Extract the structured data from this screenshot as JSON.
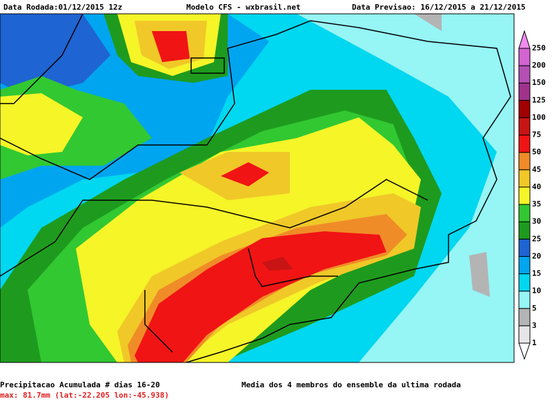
{
  "header": {
    "left": "Data Rodada:01/12/2015 12z",
    "center": "Modelo CFS - wxbrasil.net",
    "right": "Data Previsao: 16/12/2015 a 21/12/2015"
  },
  "colorbar": {
    "levels": [
      1,
      3,
      5,
      10,
      15,
      20,
      25,
      30,
      35,
      40,
      45,
      50,
      75,
      100,
      125,
      150,
      200,
      250
    ],
    "colors": [
      "#ffffff",
      "#e6e6e6",
      "#b4b4b4",
      "#96f5f5",
      "#00d7f0",
      "#00a5f0",
      "#1e64d2",
      "#1e9b1e",
      "#32c832",
      "#f5f528",
      "#f0c828",
      "#f08c28",
      "#f01414",
      "#c81414",
      "#a00000",
      "#a0328c",
      "#b450b4",
      "#d264d2",
      "#f08cf0"
    ]
  },
  "footer": {
    "title": "Precipitacao Acumulada # dias 16-20",
    "max": "max: 81.7mm (lat:-22.205 lon:-45.938)",
    "note": "Media dos 4 membros do ensemble da ultima rodada"
  }
}
